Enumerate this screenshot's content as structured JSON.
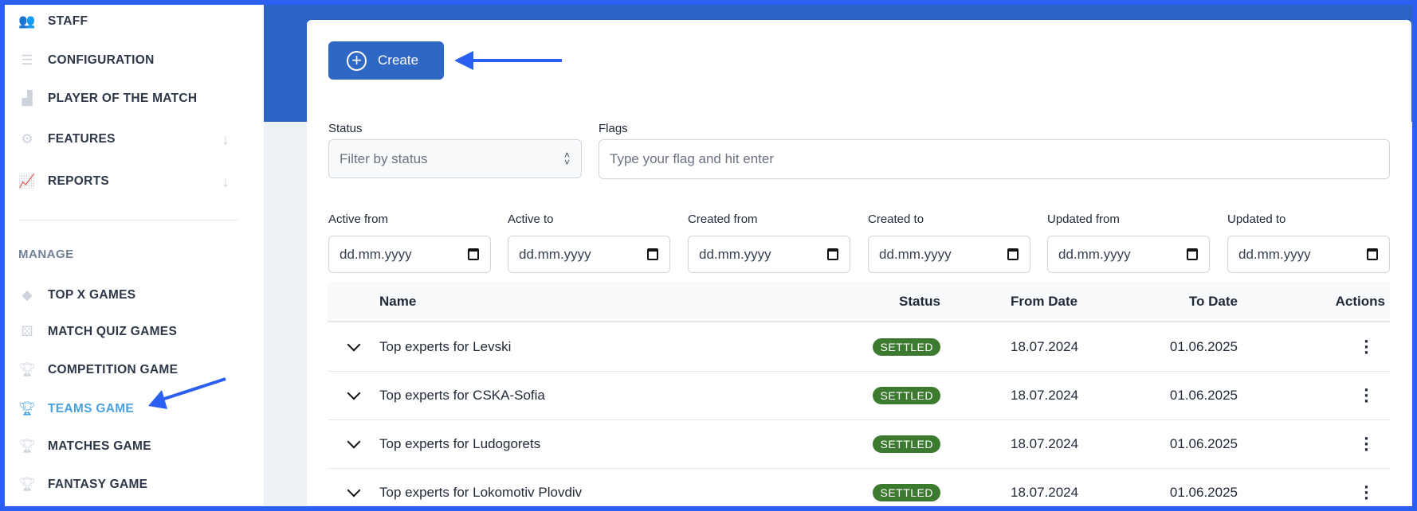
{
  "sidebar": {
    "items": [
      {
        "label": "STAFF",
        "icon": "users-icon"
      },
      {
        "label": "CONFIGURATION",
        "icon": "sliders-icon"
      },
      {
        "label": "PLAYER OF THE MATCH",
        "icon": "podium-icon"
      },
      {
        "label": "FEATURES",
        "icon": "gear-icon",
        "expandable": true
      },
      {
        "label": "REPORTS",
        "icon": "chart-line-icon",
        "expandable": true
      }
    ],
    "section_title": "MANAGE",
    "manage_items": [
      {
        "label": "TOP X GAMES",
        "icon": "gem-icon"
      },
      {
        "label": "MATCH QUIZ GAMES",
        "icon": "dice-icon"
      },
      {
        "label": "COMPETITION GAME",
        "icon": "trophy-icon"
      },
      {
        "label": "TEAMS GAME",
        "icon": "trophy-icon",
        "active": true
      },
      {
        "label": "MATCHES GAME",
        "icon": "trophy-icon"
      },
      {
        "label": "FANTASY GAME",
        "icon": "trophy-icon"
      }
    ]
  },
  "toolbar": {
    "create_label": "Create"
  },
  "filters": {
    "status_label": "Status",
    "status_placeholder": "Filter by status",
    "flags_label": "Flags",
    "flags_placeholder": "Type your flag and hit enter",
    "dates": [
      {
        "label": "Active from",
        "placeholder": "dd.mm.yyyy"
      },
      {
        "label": "Active to",
        "placeholder": "dd.mm.yyyy"
      },
      {
        "label": "Created from",
        "placeholder": "dd.mm.yyyy"
      },
      {
        "label": "Created to",
        "placeholder": "dd.mm.yyyy"
      },
      {
        "label": "Updated from",
        "placeholder": "dd.mm.yyyy"
      },
      {
        "label": "Updated to",
        "placeholder": "dd.mm.yyyy"
      }
    ]
  },
  "table": {
    "columns": [
      "Name",
      "Status",
      "From Date",
      "To Date",
      "Actions"
    ],
    "rows": [
      {
        "name": "Top experts for Levski",
        "status": "SETTLED",
        "from": "18.07.2024",
        "to": "01.06.2025"
      },
      {
        "name": "Top experts for CSKA-Sofia",
        "status": "SETTLED",
        "from": "18.07.2024",
        "to": "01.06.2025"
      },
      {
        "name": "Top experts for Ludogorets",
        "status": "SETTLED",
        "from": "18.07.2024",
        "to": "01.06.2025"
      },
      {
        "name": "Top experts for Lokomotiv Plovdiv",
        "status": "SETTLED",
        "from": "18.07.2024",
        "to": "01.06.2025"
      }
    ]
  },
  "colors": {
    "accent": "#2f68c4",
    "active": "#4aa3df",
    "settled": "#3b7a2f",
    "annotation_arrow": "#2b5ff2"
  }
}
